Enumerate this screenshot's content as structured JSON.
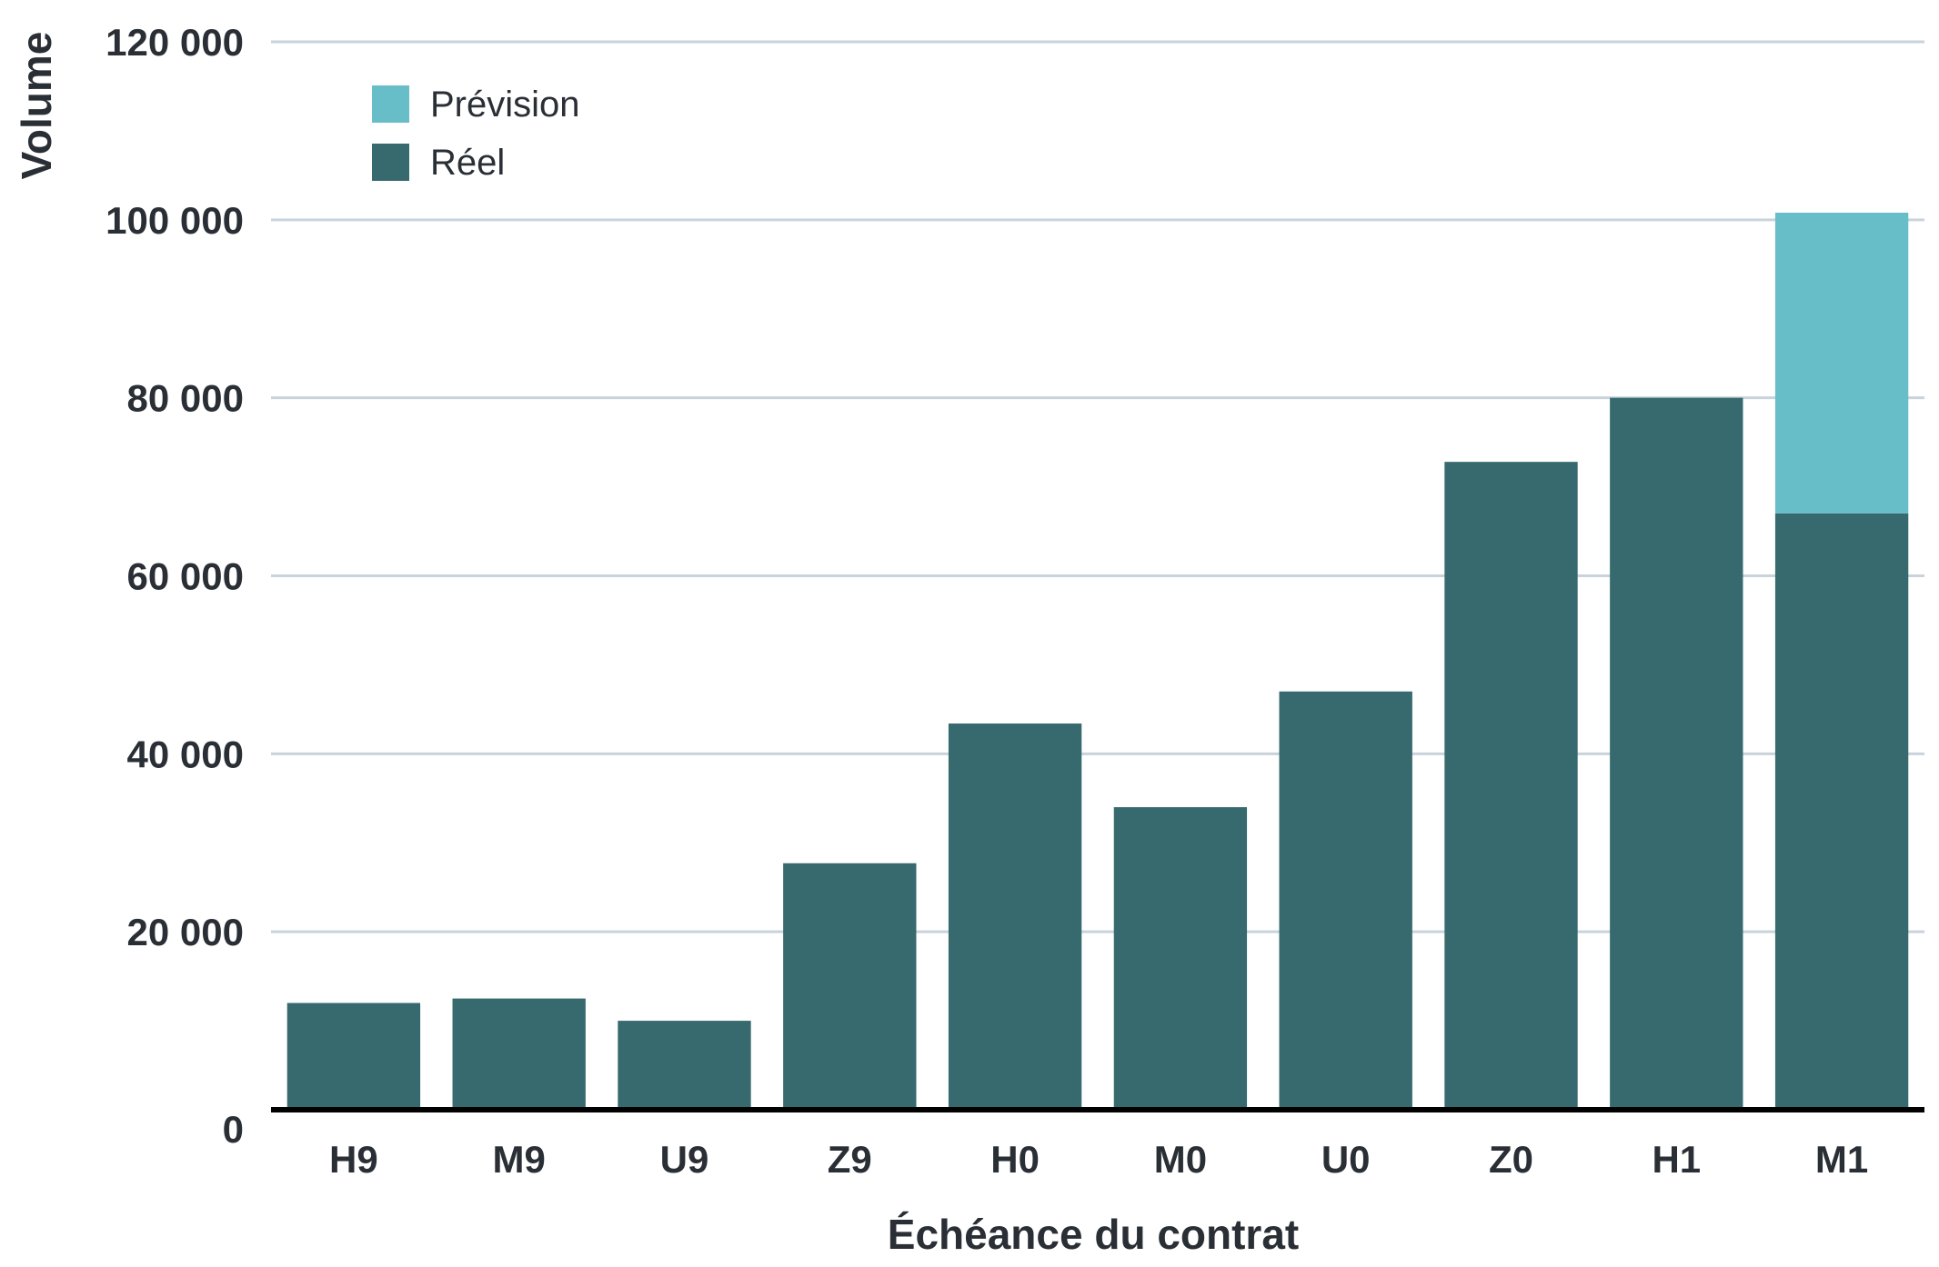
{
  "chart_data": {
    "type": "bar",
    "stacked": true,
    "title": "",
    "xlabel": "Échéance du contrat",
    "ylabel": "Volume",
    "ylim": [
      0,
      120000
    ],
    "yticks": [
      0,
      20000,
      40000,
      60000,
      80000,
      100000,
      120000
    ],
    "ytick_labels": [
      "0",
      "20 000",
      "40 000",
      "60 000",
      "80 000",
      "100 000",
      "120 000"
    ],
    "grid": true,
    "legend_position": "top-left",
    "categories": [
      "H9",
      "M9",
      "U9",
      "Z9",
      "H0",
      "M0",
      "U0",
      "Z0",
      "H1",
      "M1"
    ],
    "series": [
      {
        "name": "Réel",
        "color": "#376a6e",
        "values": [
          12000,
          12500,
          10000,
          27700,
          43400,
          34000,
          47000,
          72800,
          80000,
          67000
        ]
      },
      {
        "name": "Prévision",
        "color": "#68bec8",
        "values": [
          0,
          0,
          0,
          0,
          0,
          0,
          0,
          0,
          0,
          33800
        ]
      }
    ],
    "legend_order": [
      "Prévision",
      "Réel"
    ]
  }
}
